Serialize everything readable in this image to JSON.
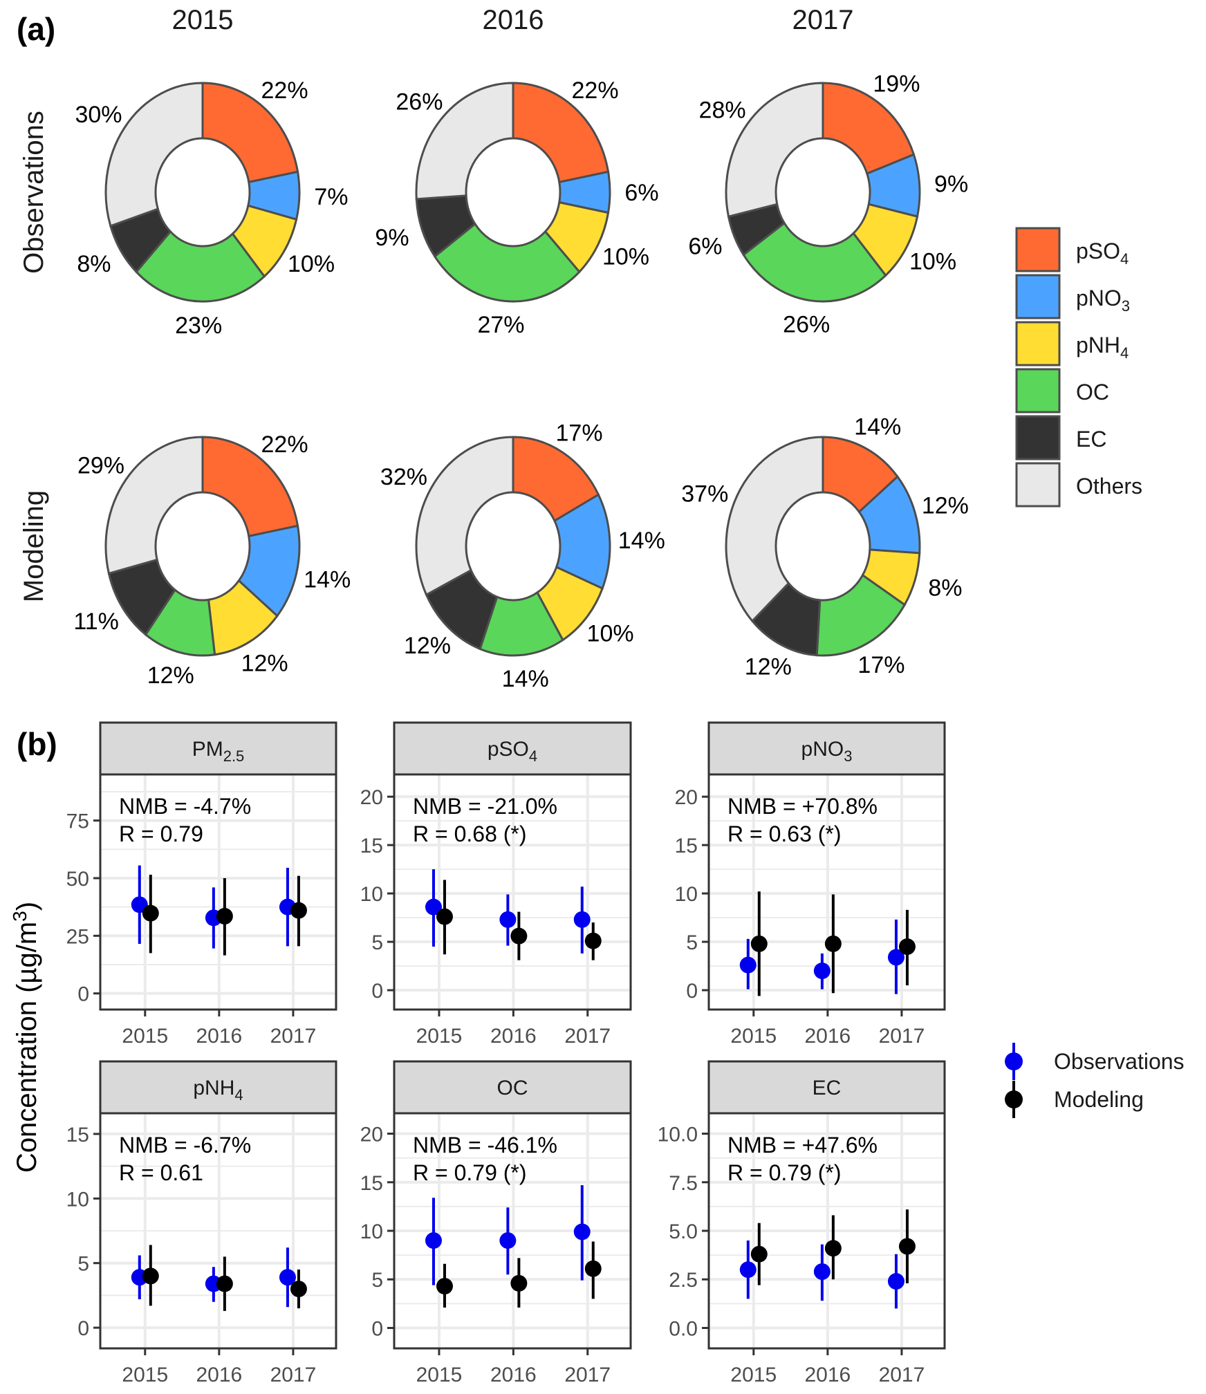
{
  "figure": {
    "panel_a_label": "(a)",
    "panel_b_label": "(b)"
  },
  "chart_data": [
    {
      "type": "pie",
      "subtype": "donut-grid",
      "panel": "(a)",
      "columns": [
        "2015",
        "2016",
        "2017"
      ],
      "rows": [
        "Observations",
        "Modeling"
      ],
      "legend": {
        "position": "right",
        "entries": [
          {
            "key": "pSO4",
            "base": "pSO",
            "sub": "4",
            "color": "#FF6A33"
          },
          {
            "key": "pNO3",
            "base": "pNO",
            "sub": "3",
            "color": "#4CA3FF"
          },
          {
            "key": "pNH4",
            "base": "pNH",
            "sub": "4",
            "color": "#FFDD33"
          },
          {
            "key": "OC",
            "base": "OC",
            "sub": "",
            "color": "#5AD65A"
          },
          {
            "key": "EC",
            "base": "EC",
            "sub": "",
            "color": "#333333"
          },
          {
            "key": "Others",
            "base": "Others",
            "sub": "",
            "color": "#E8E8E8"
          }
        ]
      },
      "values_percent": {
        "Observations": {
          "2015": {
            "pSO4": 22,
            "pNO3": 7,
            "pNH4": 10,
            "OC": 23,
            "EC": 8,
            "Others": 30
          },
          "2016": {
            "pSO4": 22,
            "pNO3": 6,
            "pNH4": 10,
            "OC": 27,
            "EC": 9,
            "Others": 26
          },
          "2017": {
            "pSO4": 19,
            "pNO3": 9,
            "pNH4": 10,
            "OC": 26,
            "EC": 6,
            "Others": 28
          }
        },
        "Modeling": {
          "2015": {
            "pSO4": 22,
            "pNO3": 14,
            "pNH4": 12,
            "OC": 12,
            "EC": 11,
            "Others": 29
          },
          "2016": {
            "pSO4": 17,
            "pNO3": 14,
            "pNH4": 10,
            "OC": 14,
            "EC": 12,
            "Others": 32
          },
          "2017": {
            "pSO4": 14,
            "pNO3": 12,
            "pNH4": 8,
            "OC": 17,
            "EC": 12,
            "Others": 37
          }
        }
      }
    },
    {
      "type": "scatter",
      "subtype": "pointrange-facets",
      "panel": "(b)",
      "ylabel": "Concentration (µg/m³)",
      "ylabel_base": "Concentration (µg/m",
      "ylabel_sup": "3",
      "ylabel_end": ")",
      "x": [
        "2015",
        "2016",
        "2017"
      ],
      "grid": true,
      "legend": {
        "position": "right",
        "entries": [
          {
            "name": "Observations",
            "color": "#0000EE"
          },
          {
            "name": "Modeling",
            "color": "#000000"
          }
        ]
      },
      "facets": [
        {
          "key": "PM2.5",
          "base": "PM",
          "sub": "2.5",
          "nmb": "NMB = -4.7%",
          "r": "R = 0.79",
          "ylim": [
            -7,
            95
          ],
          "yticks": [
            0,
            25,
            50,
            75
          ],
          "ytick_labels": [
            "0",
            "25",
            "50",
            "75"
          ],
          "minor": 12.5,
          "series": {
            "Observations": {
              "mean": [
                38.5,
                32.8,
                37.5
              ],
              "low": [
                21.5,
                19.5,
                20.5
              ],
              "high": [
                55.5,
                46.0,
                54.5
              ]
            },
            "Modeling": {
              "mean": [
                34.8,
                33.5,
                36.0
              ],
              "low": [
                17.5,
                16.5,
                20.5
              ],
              "high": [
                51.5,
                50.0,
                51.0
              ]
            }
          }
        },
        {
          "key": "pSO4",
          "base": "pSO",
          "sub": "4",
          "nmb": "NMB = -21.0%",
          "r": "R = 0.68 (*)",
          "ylim": [
            -2,
            22.3
          ],
          "yticks": [
            0,
            5,
            10,
            15,
            20
          ],
          "ytick_labels": [
            "0",
            "5",
            "10",
            "15",
            "20"
          ],
          "minor": 2.5,
          "series": {
            "Observations": {
              "mean": [
                8.6,
                7.3,
                7.3
              ],
              "low": [
                4.5,
                4.6,
                3.8
              ],
              "high": [
                12.5,
                9.9,
                10.7
              ]
            },
            "Modeling": {
              "mean": [
                7.6,
                5.6,
                5.1
              ],
              "low": [
                3.7,
                3.1,
                3.1
              ],
              "high": [
                11.4,
                8.1,
                7.0
              ]
            }
          }
        },
        {
          "key": "pNO3",
          "base": "pNO",
          "sub": "3",
          "nmb": "NMB = +70.8%",
          "r": "R = 0.63 (*)",
          "ylim": [
            -2,
            22.3
          ],
          "yticks": [
            0,
            5,
            10,
            15,
            20
          ],
          "ytick_labels": [
            "0",
            "5",
            "10",
            "15",
            "20"
          ],
          "minor": 2.5,
          "series": {
            "Observations": {
              "mean": [
                2.6,
                2.0,
                3.4
              ],
              "low": [
                0.1,
                0.1,
                -0.4
              ],
              "high": [
                5.3,
                3.8,
                7.3
              ]
            },
            "Modeling": {
              "mean": [
                4.8,
                4.8,
                4.5
              ],
              "low": [
                -0.6,
                -0.3,
                0.5
              ],
              "high": [
                10.2,
                9.9,
                8.3
              ]
            }
          }
        },
        {
          "key": "pNH4",
          "base": "pNH",
          "sub": "4",
          "nmb": "NMB = -6.7%",
          "r": "R = 0.61",
          "ylim": [
            -1.6,
            16.6
          ],
          "yticks": [
            0,
            5,
            10,
            15
          ],
          "ytick_labels": [
            "0",
            "5",
            "10",
            "15"
          ],
          "minor": 2.5,
          "series": {
            "Observations": {
              "mean": [
                3.9,
                3.4,
                3.9
              ],
              "low": [
                2.2,
                2.0,
                1.6
              ],
              "high": [
                5.6,
                4.7,
                6.2
              ]
            },
            "Modeling": {
              "mean": [
                4.0,
                3.4,
                3.0
              ],
              "low": [
                1.7,
                1.3,
                1.5
              ],
              "high": [
                6.4,
                5.5,
                4.5
              ]
            }
          }
        },
        {
          "key": "OC",
          "base": "OC",
          "sub": "",
          "nmb": "NMB = -46.1%",
          "r": "R = 0.79 (*)",
          "ylim": [
            -2.1,
            22.1
          ],
          "yticks": [
            0,
            5,
            10,
            15,
            20
          ],
          "ytick_labels": [
            "0",
            "5",
            "10",
            "15",
            "20"
          ],
          "minor": 2.5,
          "series": {
            "Observations": {
              "mean": [
                9.0,
                9.0,
                9.9
              ],
              "low": [
                4.4,
                5.5,
                4.9
              ],
              "high": [
                13.4,
                12.4,
                14.7
              ]
            },
            "Modeling": {
              "mean": [
                4.3,
                4.6,
                6.1
              ],
              "low": [
                2.1,
                2.1,
                3.0
              ],
              "high": [
                6.6,
                7.2,
                8.9
              ]
            }
          }
        },
        {
          "key": "EC",
          "base": "EC",
          "sub": "",
          "nmb": "NMB = +47.6%",
          "r": "R = 0.79 (*)",
          "ylim": [
            -1.05,
            11.05
          ],
          "yticks": [
            0,
            2.5,
            5,
            7.5,
            10
          ],
          "ytick_labels": [
            "0.0",
            "2.5",
            "5.0",
            "7.5",
            "10.0"
          ],
          "minor": 1.25,
          "series": {
            "Observations": {
              "mean": [
                3.0,
                2.9,
                2.4
              ],
              "low": [
                1.5,
                1.4,
                1.0
              ],
              "high": [
                4.5,
                4.3,
                3.8
              ]
            },
            "Modeling": {
              "mean": [
                3.8,
                4.1,
                4.2
              ],
              "low": [
                2.2,
                2.5,
                2.3
              ],
              "high": [
                5.4,
                5.8,
                6.1
              ]
            }
          }
        }
      ]
    }
  ]
}
